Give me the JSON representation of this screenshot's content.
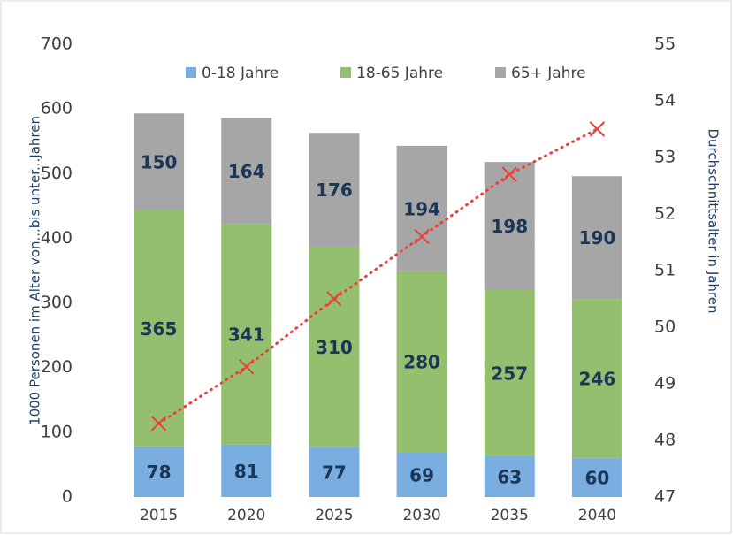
{
  "chart_data": {
    "type": "bar",
    "stacked": true,
    "categories": [
      "2015",
      "2020",
      "2025",
      "2030",
      "2035",
      "2040"
    ],
    "ylabel": "1000 Personen im Alter von...bis unter...Jahren",
    "y2label": "Durchschnittsalter in Jahren",
    "ylim": [
      0,
      700
    ],
    "yticks": [
      0,
      100,
      200,
      300,
      400,
      500,
      600,
      700
    ],
    "y2lim": [
      47,
      55
    ],
    "y2ticks": [
      47,
      48,
      49,
      50,
      51,
      52,
      53,
      54,
      55
    ],
    "legend": "top",
    "series": [
      {
        "name": "0-18 Jahre",
        "color": "#7aade0",
        "values": [
          78,
          81,
          77,
          69,
          63,
          60
        ]
      },
      {
        "name": "18-65 Jahre",
        "color": "#93bf6e",
        "values": [
          365,
          341,
          310,
          280,
          257,
          246
        ]
      },
      {
        "name": "65+ Jahre",
        "color": "#a6a6a6",
        "values": [
          150,
          164,
          176,
          194,
          198,
          190
        ]
      },
      {
        "type": "line",
        "axis": "y2",
        "color": "#e8413a",
        "values": [
          48.3,
          49.3,
          50.5,
          51.6,
          52.7,
          53.5
        ]
      }
    ]
  }
}
